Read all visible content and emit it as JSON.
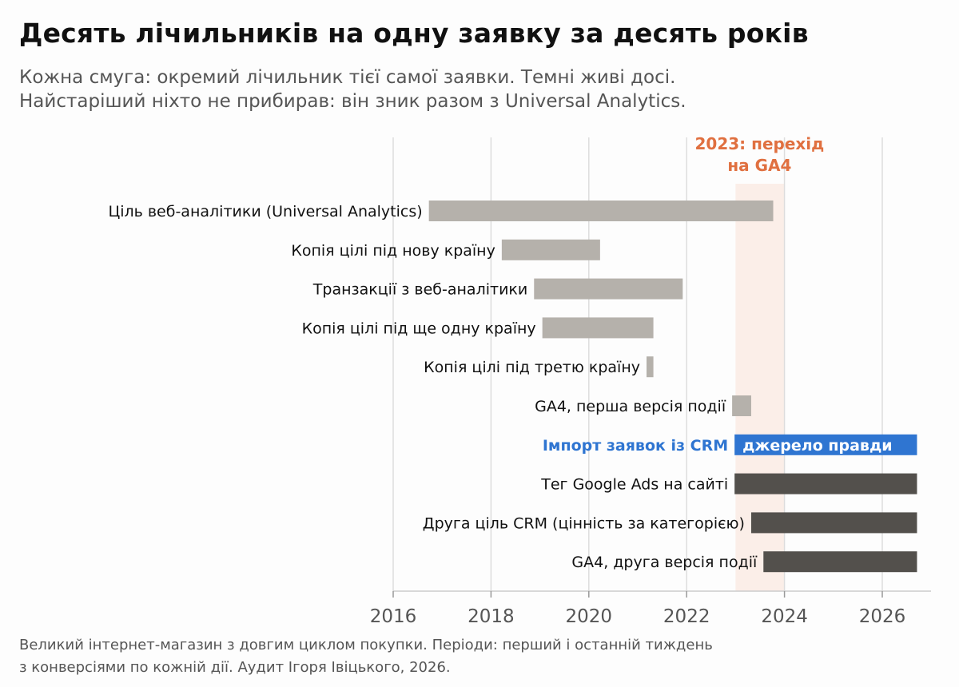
{
  "title": "Десять лічильників на одну заявку за десять років",
  "subtitle": [
    "Кожна смуга: окремий лічильник тієї самої заявки. Темні живі досі.",
    "Найстаріший ніхто не прибирав: він зник разом з Universal Analytics."
  ],
  "footnote": [
    "Великий інтернет-магазин з довгим циклом покупки. Періоди: перший і останній тиждень",
    "з конверсіями по кожній дії. Аудит Ігоря Івіцького, 2026."
  ],
  "colors": {
    "legacy": "#b5b1ab",
    "alive": "#53504c",
    "truth": "#2f75d1",
    "highlight_band": "#fbeee8",
    "annotation": "#e07040",
    "grid": "#dddddd"
  },
  "chart_data": {
    "type": "bar",
    "orientation": "horizontal-range",
    "xlim": [
      2016,
      2027.1
    ],
    "xticks": [
      "2016",
      "2018",
      "2020",
      "2022",
      "2024",
      "2026"
    ],
    "grid": "vertical",
    "highlight": {
      "from": 2023.0,
      "to": 2024.0,
      "label": [
        "2023: перехід",
        "на GA4"
      ]
    },
    "bars": [
      {
        "label": "Ціль веб-аналітики (Universal Analytics)",
        "start": 2016.73,
        "end": 2023.77,
        "status": "legacy"
      },
      {
        "label": "Копія цілі під нову країну",
        "start": 2018.22,
        "end": 2020.23,
        "status": "legacy"
      },
      {
        "label": "Транзакції з веб-аналітики",
        "start": 2018.88,
        "end": 2021.92,
        "status": "legacy"
      },
      {
        "label": "Копія цілі під ще одну країну",
        "start": 2019.05,
        "end": 2021.32,
        "status": "legacy"
      },
      {
        "label": "Копія цілі під третю країну",
        "start": 2021.18,
        "end": 2021.32,
        "status": "legacy"
      },
      {
        "label": "GA4, перша версія події",
        "start": 2022.93,
        "end": 2023.32,
        "status": "legacy"
      },
      {
        "label": "Імпорт заявок із CRM",
        "start": 2022.98,
        "end": 2026.71,
        "status": "truth",
        "bar_text": "джерело правди"
      },
      {
        "label": "Тег Google Ads на сайті",
        "start": 2022.98,
        "end": 2026.71,
        "status": "alive"
      },
      {
        "label": "Друга ціль CRM (цінність за категорією)",
        "start": 2023.32,
        "end": 2026.71,
        "status": "alive"
      },
      {
        "label": "GA4, друга версія події",
        "start": 2023.57,
        "end": 2026.71,
        "status": "alive"
      }
    ]
  }
}
